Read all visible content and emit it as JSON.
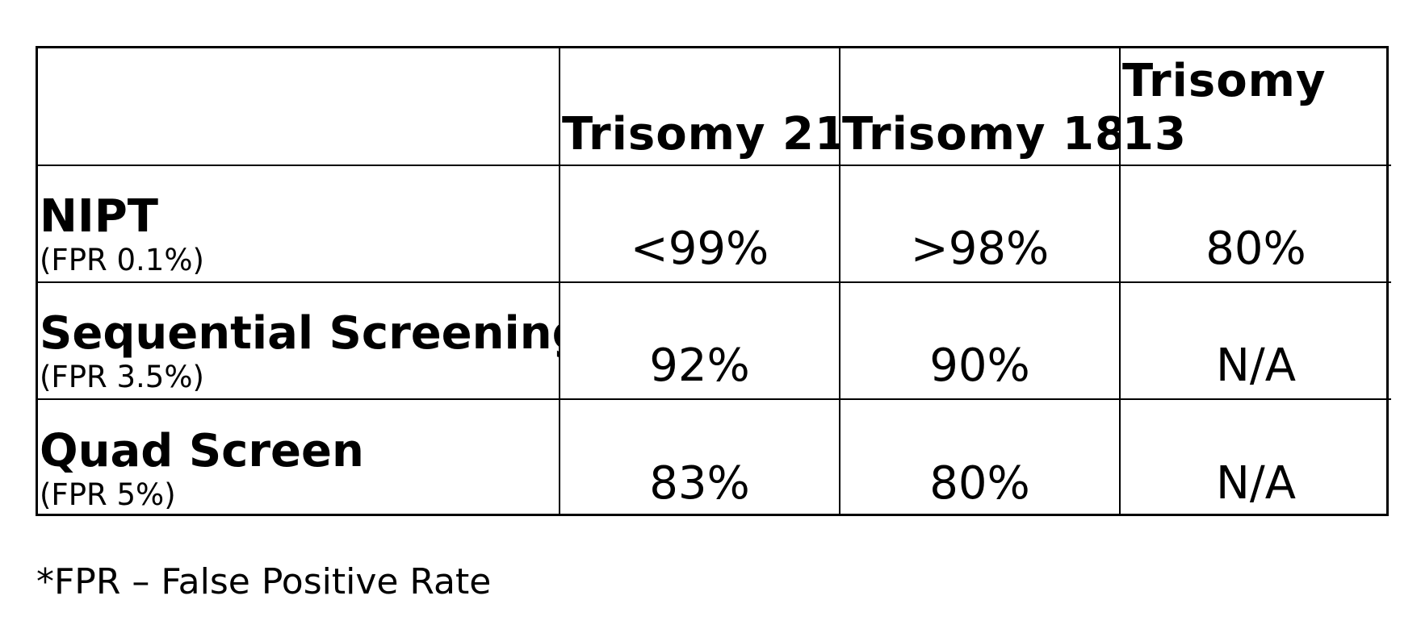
{
  "table": {
    "headers": [
      "",
      "Trisomy 21",
      "Trisomy 18",
      "Trisomy 13"
    ],
    "rows": [
      {
        "title": "NIPT",
        "subtitle": "(FPR 0.1%)",
        "values": [
          "<99%",
          ">98%",
          "80%"
        ]
      },
      {
        "title": "Sequential Screening",
        "subtitle": "(FPR 3.5%)",
        "values": [
          "92%",
          "90%",
          "N/A"
        ]
      },
      {
        "title": "Quad Screen",
        "subtitle": "(FPR 5%)",
        "values": [
          "83%",
          "80%",
          "N/A"
        ]
      }
    ]
  },
  "footnote": "*FPR – False Positive Rate"
}
